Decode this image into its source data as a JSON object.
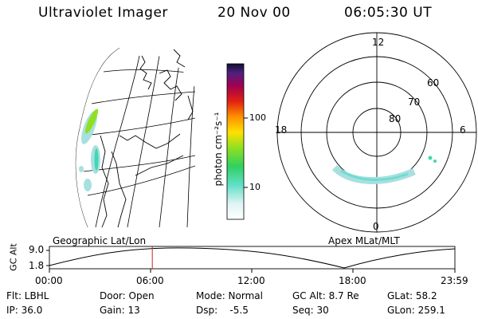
{
  "header": {
    "instrument": "Ultraviolet Imager",
    "date": "20 Nov 00",
    "time": "06:05:30 UT"
  },
  "colorbar": {
    "label": "photon cm⁻²s⁻¹",
    "ticks": [
      "100",
      "10"
    ]
  },
  "polar_plot": {
    "mlt_labels": [
      "12",
      "18",
      "6",
      "0"
    ],
    "lat_labels": [
      "60",
      "70",
      "80"
    ]
  },
  "orbit_panel": {
    "left_title": "Geographic Lat/Lon",
    "right_title": "Apex MLat/MLT",
    "ylabel": "GC Alt",
    "y_ticks": [
      "9.0",
      "1.8"
    ],
    "x_ticks": [
      "00:00",
      "06:00",
      "12:00",
      "18:00",
      "23:59"
    ],
    "current_time_fraction": 0.2538
  },
  "status": {
    "filter": "Flt: LBHL",
    "door": "Door: Open",
    "mode": "Mode: Normal",
    "gc_alt": "GC Alt: 8.7 Re",
    "glat": "GLat:  58.2",
    "ip": "IP: 36.0",
    "gain": "Gain: 13",
    "dsp": "Dsp:    -5.5",
    "seq": "Seq: 30",
    "glon": "GLon: 259.1"
  },
  "colors": {
    "accent_marker": "#cc2222",
    "aurora_low": "#a8e0e0",
    "aurora_mid": "#40d8b0",
    "aurora_high": "#90e020"
  }
}
